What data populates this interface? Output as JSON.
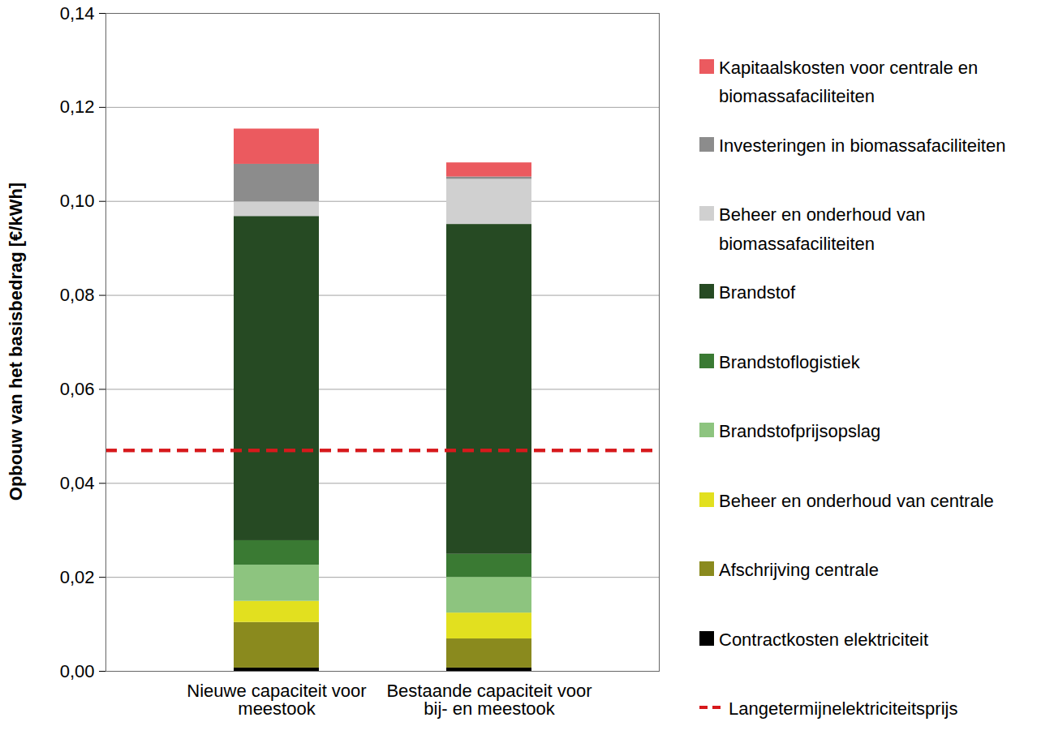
{
  "chart_data": {
    "type": "bar",
    "stacked": true,
    "ylabel": "Opbouw van het basisbedrag [€/kWh]",
    "categories": [
      "Nieuwe capaciteit voor meestook",
      "Bestaande capaciteit voor bij- en meestook"
    ],
    "ylim": [
      0,
      0.14
    ],
    "yticks": [
      {
        "value": 0,
        "label": "0,00"
      },
      {
        "value": 0.02,
        "label": "0,02"
      },
      {
        "value": 0.04,
        "label": "0,04"
      },
      {
        "value": 0.06,
        "label": "0,06"
      },
      {
        "value": 0.08,
        "label": "0,08"
      },
      {
        "value": 0.1,
        "label": "0,10"
      },
      {
        "value": 0.12,
        "label": "0,12"
      },
      {
        "value": 0.14,
        "label": "0,14"
      }
    ],
    "grid": true,
    "legend": "right",
    "series": [
      {
        "name": "Contractkosten elektriciteit",
        "color": "#000000",
        "values": [
          0.0007,
          0.0007
        ]
      },
      {
        "name": "Afschrijving centrale",
        "color": "#8a8a1e",
        "values": [
          0.0097,
          0.0062
        ]
      },
      {
        "name": "Beheer en onderhoud van centrale",
        "color": "#e2e01f",
        "values": [
          0.0045,
          0.0055
        ]
      },
      {
        "name": "Brandstofprijsopslag",
        "color": "#8dc47f",
        "values": [
          0.0077,
          0.0076
        ]
      },
      {
        "name": "Brandstoflogistiek",
        "color": "#3a7a33",
        "values": [
          0.0052,
          0.0049
        ]
      },
      {
        "name": "Brandstof",
        "color": "#264a23",
        "values": [
          0.069,
          0.0702
        ]
      },
      {
        "name": "Beheer en onderhoud van biomassafaciliteiten",
        "color": "#d0d0d0",
        "values": [
          0.0031,
          0.0096
        ]
      },
      {
        "name": "Investeringen in biomassafaciliteiten",
        "color": "#8c8c8c",
        "values": [
          0.008,
          0.0005
        ]
      },
      {
        "name": "Kapitaalskosten voor centrale en biomassafaciliteiten",
        "color": "#eb5a5f",
        "values": [
          0.0075,
          0.003
        ]
      },
      {
        "name": "Langetermijnelektriciteitsprijs",
        "type": "line",
        "line_style": "dashed",
        "color": "#d7191c",
        "values": [
          0.047,
          0.047
        ]
      }
    ]
  }
}
